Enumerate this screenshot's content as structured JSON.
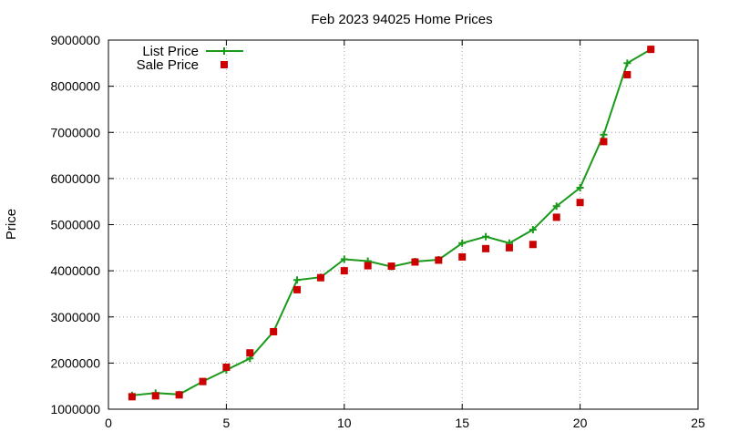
{
  "chart_data": {
    "type": "line",
    "title": "Feb 2023 94025 Home Prices",
    "xlabel": "",
    "ylabel": "Price",
    "xlim": [
      0,
      25
    ],
    "ylim": [
      1000000,
      9000000
    ],
    "x_ticks": [
      0,
      5,
      10,
      15,
      20,
      25
    ],
    "y_ticks": [
      1000000,
      2000000,
      3000000,
      4000000,
      5000000,
      6000000,
      7000000,
      8000000,
      9000000
    ],
    "x_tick_labels": [
      "0",
      "5",
      "10",
      "15",
      "20",
      "25"
    ],
    "y_tick_labels": [
      "1000000",
      "2000000",
      "3000000",
      "4000000",
      "5000000",
      "6000000",
      "7000000",
      "8000000",
      "9000000"
    ],
    "grid": true,
    "legend_position": "top-left",
    "series": [
      {
        "name": "List Price",
        "style": "line-with-plus-markers",
        "color": "#1a9a1a",
        "x": [
          1,
          2,
          3,
          4,
          5,
          6,
          7,
          8,
          9,
          10,
          11,
          12,
          13,
          14,
          15,
          16,
          17,
          18,
          19,
          20,
          21,
          22,
          23
        ],
        "y": [
          1300000,
          1350000,
          1320000,
          1600000,
          1850000,
          2100000,
          2680000,
          3800000,
          3860000,
          4250000,
          4210000,
          4090000,
          4200000,
          4240000,
          4600000,
          4740000,
          4600000,
          4890000,
          5400000,
          5800000,
          6950000,
          8500000,
          8800000
        ]
      },
      {
        "name": "Sale Price",
        "style": "square-markers",
        "color": "#cc0000",
        "x": [
          1,
          2,
          3,
          4,
          5,
          6,
          7,
          8,
          9,
          10,
          11,
          12,
          13,
          14,
          15,
          16,
          17,
          18,
          19,
          20,
          21,
          22,
          23
        ],
        "y": [
          1270000,
          1290000,
          1310000,
          1600000,
          1910000,
          2220000,
          2680000,
          3590000,
          3850000,
          4000000,
          4110000,
          4100000,
          4190000,
          4230000,
          4300000,
          4480000,
          4500000,
          4570000,
          5160000,
          5480000,
          6800000,
          8250000,
          8800000
        ]
      }
    ]
  }
}
